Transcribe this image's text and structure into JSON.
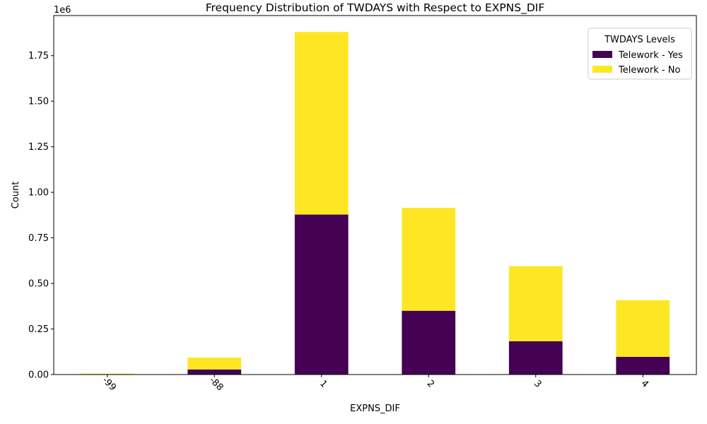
{
  "chart_data": {
    "type": "bar",
    "stacked": true,
    "title": "Frequency Distribution of TWDAYS with Respect to EXPNS_DIF",
    "xlabel": "EXPNS_DIF",
    "ylabel": "Count",
    "offset_text": "1e6",
    "categories": [
      "-99",
      "-88",
      "1",
      "2",
      "3",
      "4"
    ],
    "series": [
      {
        "name": "Telework - Yes",
        "color": "#440154",
        "values": [
          2000,
          28000,
          878000,
          350000,
          183000,
          97000
        ]
      },
      {
        "name": "Telework - No",
        "color": "#fde725",
        "values": [
          3000,
          65000,
          1002000,
          565000,
          412000,
          311000
        ]
      }
    ],
    "ylim": [
      0,
      1970000
    ],
    "yticks": [
      0,
      250000,
      500000,
      750000,
      1000000,
      1250000,
      1500000,
      1750000
    ],
    "ytick_labels": [
      "0.00",
      "0.25",
      "0.50",
      "0.75",
      "1.00",
      "1.25",
      "1.50",
      "1.75"
    ],
    "legend": {
      "title": "TWDAYS Levels",
      "position": "top-right"
    },
    "grid": false
  }
}
